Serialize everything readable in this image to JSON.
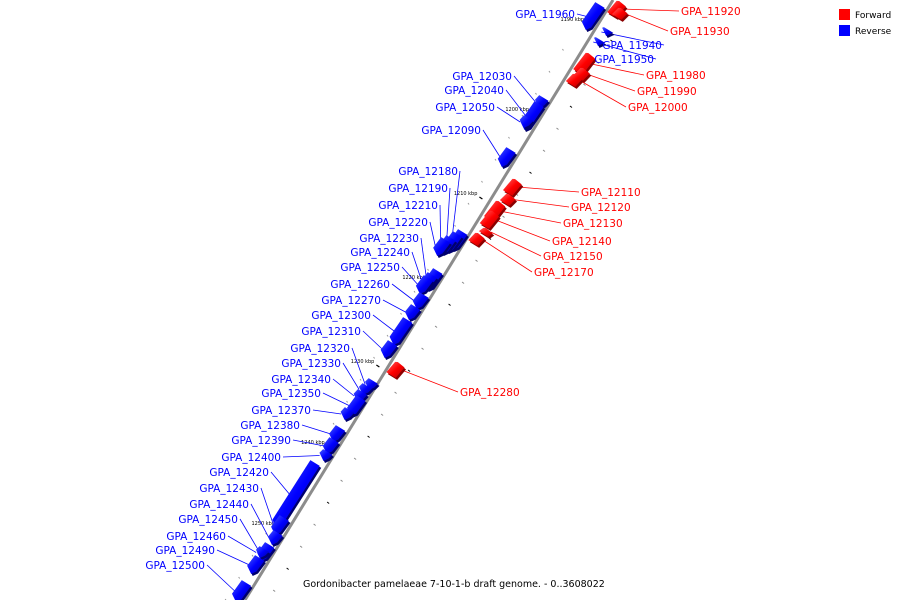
{
  "caption": "Gordonibacter pamelaeae 7-10-1-b draft genome. - 0..3608022",
  "colors": {
    "forward": "#ff0000",
    "reverse": "#0000ff",
    "backbone": "#8c8c8c",
    "tick": "#000000"
  },
  "legend": [
    {
      "label": "Forward",
      "strand": "forward"
    },
    {
      "label": "Reverse",
      "strand": "reverse"
    }
  ],
  "ticks": [
    {
      "label": "1190 kbp",
      "kbp": 1190
    },
    {
      "label": "1200 kbp",
      "kbp": 1200
    },
    {
      "label": "1210 kbp",
      "kbp": 1210
    },
    {
      "label": "1220 kbp",
      "kbp": 1220
    },
    {
      "label": "1230 kbp",
      "kbp": 1230
    },
    {
      "label": "1240 kbp",
      "kbp": 1240
    },
    {
      "label": "1250 kbp",
      "kbp": 1250
    }
  ],
  "genes": [
    {
      "label": "GPA_11920",
      "strand": "forward"
    },
    {
      "label": "GPA_11930",
      "strand": "forward"
    },
    {
      "label": "GPA_11940",
      "strand": "reverse"
    },
    {
      "label": "GPA_11950",
      "strand": "reverse"
    },
    {
      "label": "GPA_11960",
      "strand": "reverse"
    },
    {
      "label": "GPA_11980",
      "strand": "forward"
    },
    {
      "label": "GPA_11990",
      "strand": "forward"
    },
    {
      "label": "GPA_12000",
      "strand": "forward"
    },
    {
      "label": "GPA_12030",
      "strand": "reverse"
    },
    {
      "label": "GPA_12040",
      "strand": "reverse"
    },
    {
      "label": "GPA_12050",
      "strand": "reverse"
    },
    {
      "label": "GPA_12090",
      "strand": "reverse"
    },
    {
      "label": "GPA_12110",
      "strand": "forward"
    },
    {
      "label": "GPA_12120",
      "strand": "forward"
    },
    {
      "label": "GPA_12130",
      "strand": "forward"
    },
    {
      "label": "GPA_12140",
      "strand": "forward"
    },
    {
      "label": "GPA_12150",
      "strand": "forward"
    },
    {
      "label": "GPA_12170",
      "strand": "forward"
    },
    {
      "label": "GPA_12180",
      "strand": "reverse"
    },
    {
      "label": "GPA_12190",
      "strand": "reverse"
    },
    {
      "label": "GPA_12210",
      "strand": "reverse"
    },
    {
      "label": "GPA_12220",
      "strand": "reverse"
    },
    {
      "label": "GPA_12230",
      "strand": "reverse"
    },
    {
      "label": "GPA_12240",
      "strand": "reverse"
    },
    {
      "label": "GPA_12250",
      "strand": "reverse"
    },
    {
      "label": "GPA_12260",
      "strand": "reverse"
    },
    {
      "label": "GPA_12270",
      "strand": "reverse"
    },
    {
      "label": "GPA_12280",
      "strand": "forward"
    },
    {
      "label": "GPA_12300",
      "strand": "reverse"
    },
    {
      "label": "GPA_12310",
      "strand": "reverse"
    },
    {
      "label": "GPA_12320",
      "strand": "reverse"
    },
    {
      "label": "GPA_12330",
      "strand": "reverse"
    },
    {
      "label": "GPA_12340",
      "strand": "reverse"
    },
    {
      "label": "GPA_12350",
      "strand": "reverse"
    },
    {
      "label": "GPA_12370",
      "strand": "reverse"
    },
    {
      "label": "GPA_12380",
      "strand": "reverse"
    },
    {
      "label": "GPA_12390",
      "strand": "reverse"
    },
    {
      "label": "GPA_12400",
      "strand": "reverse"
    },
    {
      "label": "GPA_12420",
      "strand": "reverse"
    },
    {
      "label": "GPA_12430",
      "strand": "reverse"
    },
    {
      "label": "GPA_12440",
      "strand": "reverse"
    },
    {
      "label": "GPA_12450",
      "strand": "reverse"
    },
    {
      "label": "GPA_12460",
      "strand": "reverse"
    },
    {
      "label": "GPA_12490",
      "strand": "reverse"
    },
    {
      "label": "GPA_12500",
      "strand": "reverse"
    }
  ]
}
